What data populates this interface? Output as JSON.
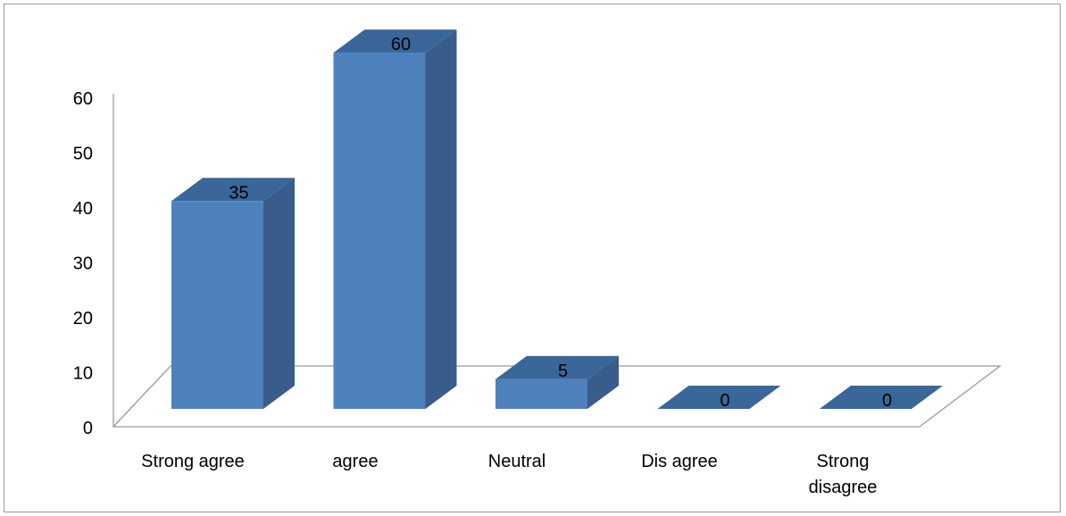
{
  "chart_data": {
    "type": "bar",
    "style": "3d-column",
    "categories": [
      "Strong agree",
      "agree",
      "Neutral",
      "Dis agree",
      "Strong\ndisagree"
    ],
    "values": [
      35,
      60,
      5,
      0,
      0
    ],
    "data_labels": [
      "35",
      "60",
      "5",
      "0",
      "0"
    ],
    "y_ticks": [
      "0",
      "10",
      "20",
      "30",
      "40",
      "50",
      "60"
    ],
    "ylim": [
      0,
      60
    ],
    "grid": false,
    "legend": "none",
    "colors": {
      "bar_front": "#4f81bd",
      "bar_side": "#385d8a",
      "bar_top": "#3a6699",
      "floor_line": "#9a9a9a"
    }
  }
}
